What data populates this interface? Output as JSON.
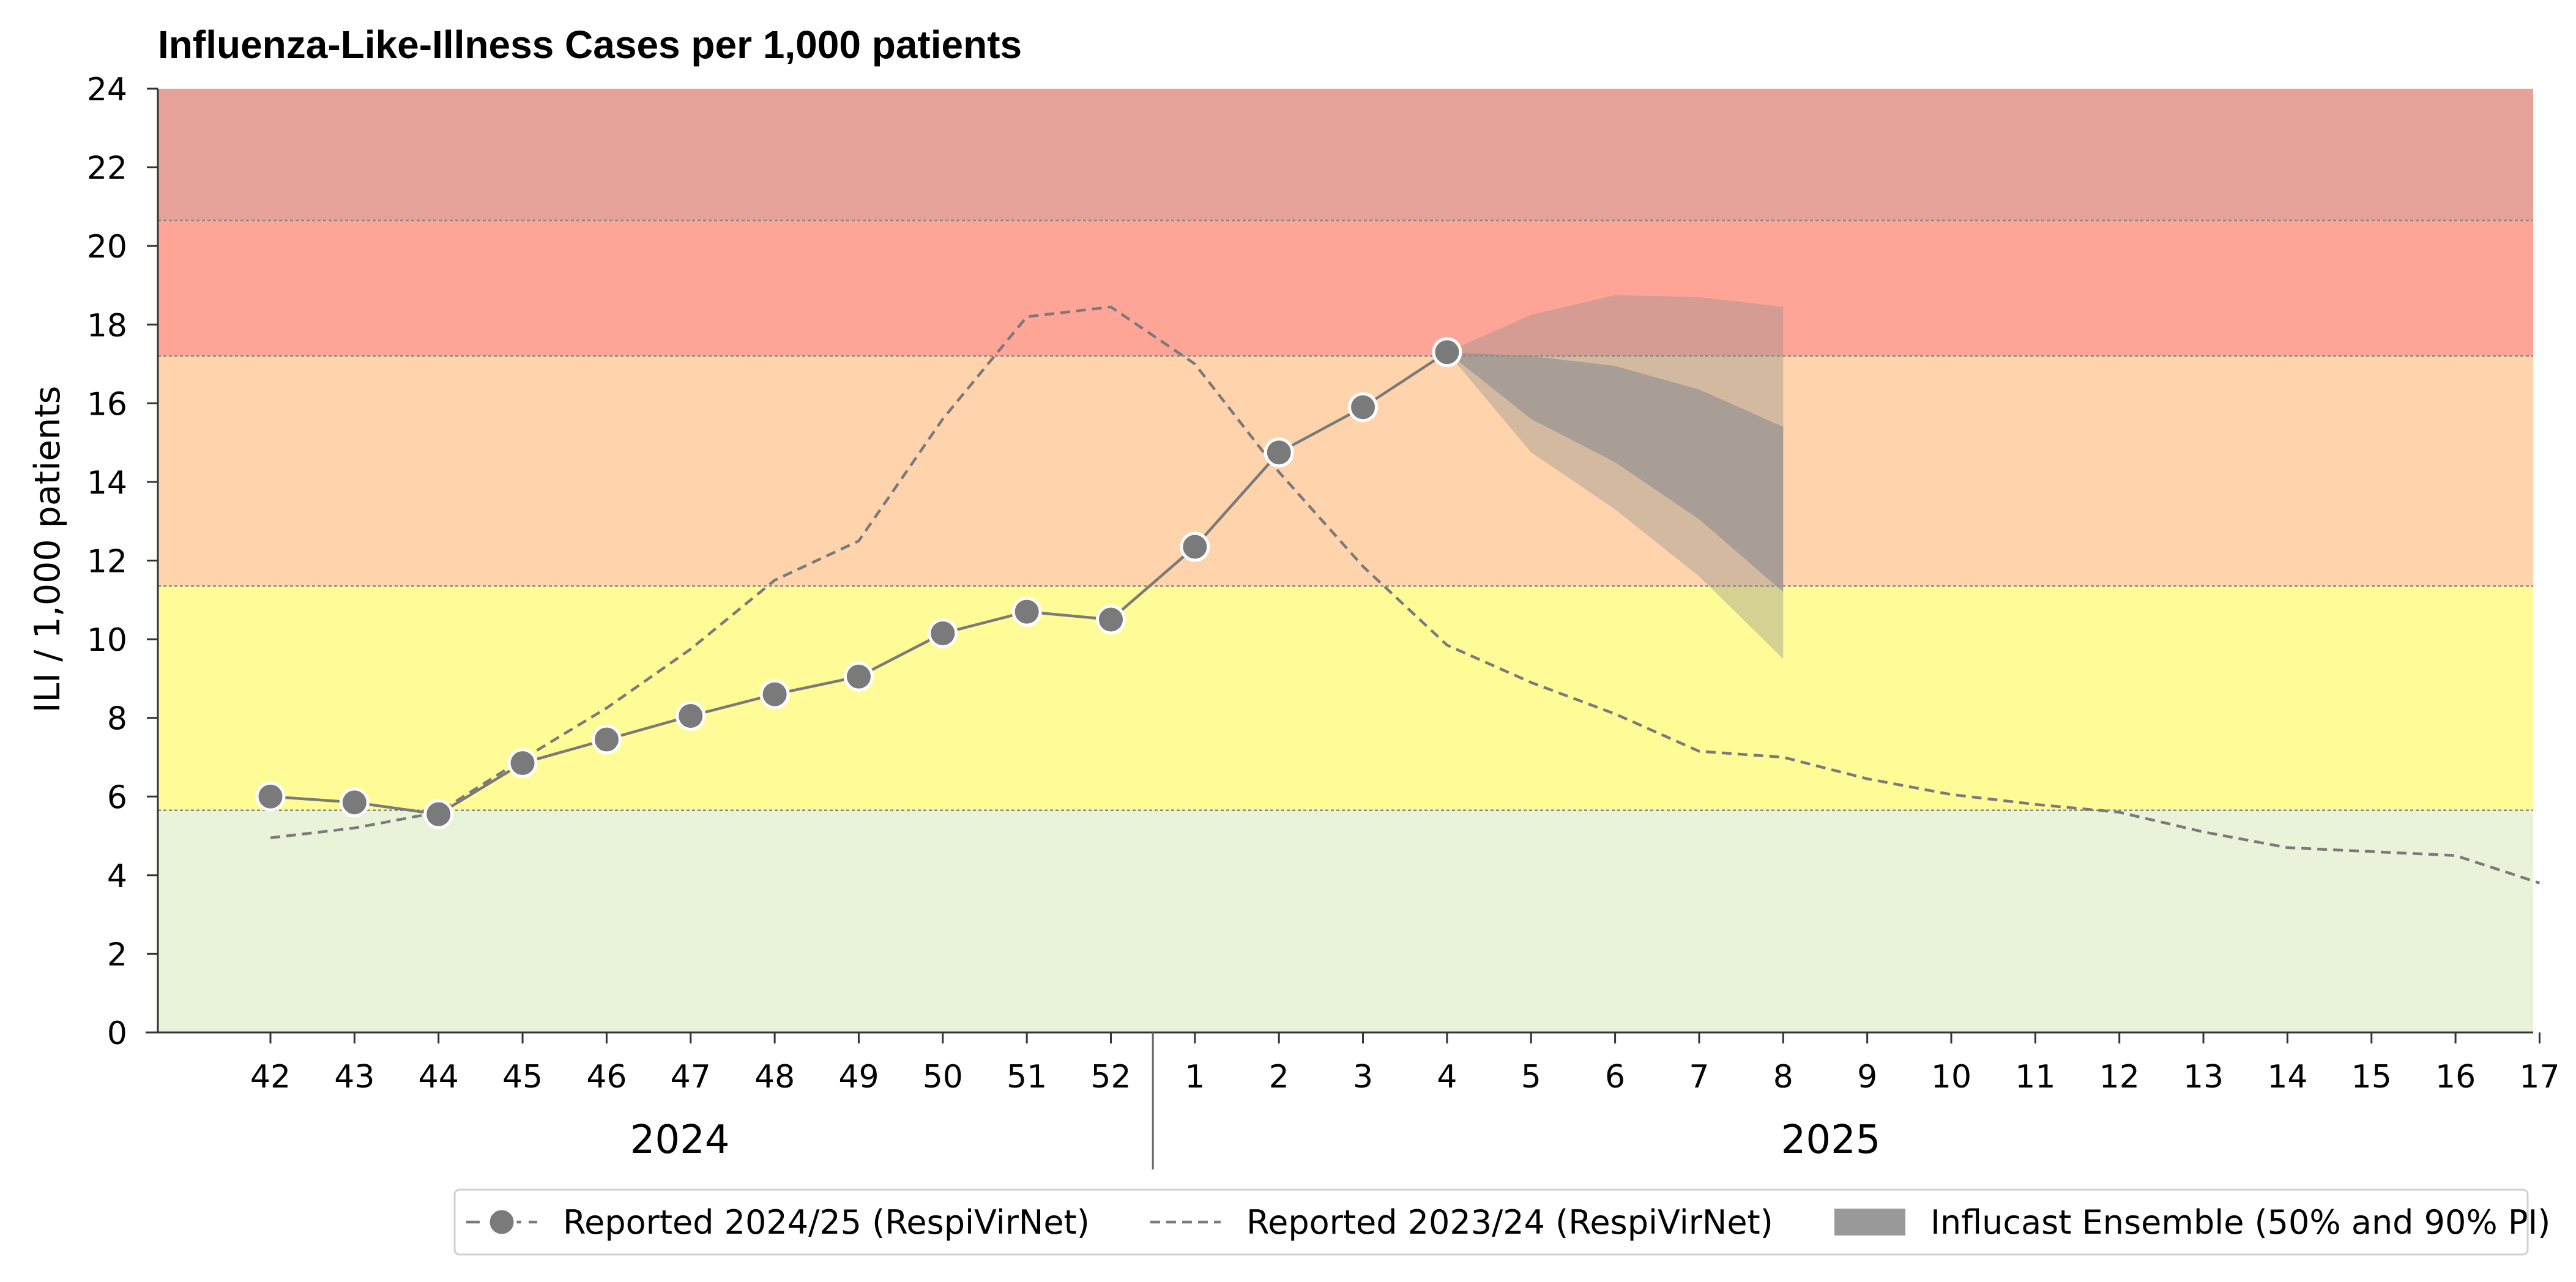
{
  "chart_data": {
    "type": "line",
    "title": "Influenza-Like-Illness Cases per 1,000 patients",
    "ylabel": "ILI / 1,000 patients",
    "xlabel": "",
    "ylim": [
      0,
      24
    ],
    "y_ticks": [
      0,
      2,
      4,
      6,
      8,
      10,
      12,
      14,
      16,
      18,
      20,
      22,
      24
    ],
    "categories": [
      "42",
      "43",
      "44",
      "45",
      "46",
      "47",
      "48",
      "49",
      "50",
      "51",
      "52",
      "1",
      "2",
      "3",
      "4",
      "5",
      "6",
      "7",
      "8",
      "9",
      "10",
      "11",
      "12",
      "13",
      "14",
      "15",
      "16",
      "17"
    ],
    "year_groups": [
      {
        "label": "2024",
        "first": "42",
        "last": "52"
      },
      {
        "label": "2025",
        "first": "1",
        "last": "17"
      }
    ],
    "intensity_bands": [
      {
        "from": 0,
        "to": 5.65,
        "color": "#e8f3da"
      },
      {
        "from": 5.65,
        "to": 11.35,
        "color": "#fffb97"
      },
      {
        "from": 11.35,
        "to": 17.2,
        "color": "#ffd4ad"
      },
      {
        "from": 17.2,
        "to": 20.65,
        "color": "#ffa597"
      },
      {
        "from": 20.65,
        "to": 24,
        "color": "#e6a298"
      }
    ],
    "series": [
      {
        "name": "Reported 2024/25 (RespiVirNet)",
        "style": "solid-markers",
        "color": "#7a7a7a",
        "x": [
          "42",
          "43",
          "44",
          "45",
          "46",
          "47",
          "48",
          "49",
          "50",
          "51",
          "52",
          "1",
          "2",
          "3",
          "4"
        ],
        "values": [
          6.0,
          5.85,
          5.55,
          6.85,
          7.45,
          8.05,
          8.6,
          9.05,
          10.15,
          10.7,
          10.5,
          12.35,
          14.75,
          15.9,
          17.3
        ]
      },
      {
        "name": "Reported 2023/24 (RespiVirNet)",
        "style": "dashed",
        "color": "#7a7a7a",
        "x": [
          "42",
          "43",
          "44",
          "45",
          "46",
          "47",
          "48",
          "49",
          "50",
          "51",
          "52",
          "1",
          "2",
          "3",
          "4",
          "5",
          "6",
          "7",
          "8",
          "9",
          "10",
          "11",
          "12",
          "13",
          "14",
          "15",
          "16",
          "17"
        ],
        "values": [
          4.95,
          5.2,
          5.6,
          6.95,
          8.25,
          9.75,
          11.5,
          12.5,
          15.6,
          18.2,
          18.45,
          17.0,
          14.25,
          11.85,
          9.85,
          8.9,
          8.1,
          7.15,
          7.0,
          6.45,
          6.05,
          5.8,
          5.6,
          5.1,
          4.7,
          4.6,
          4.5,
          3.8
        ]
      }
    ],
    "forecast": {
      "name": "Influcast Ensemble (50% and 90% PI)",
      "color": "#8e8e8e",
      "x": [
        "4",
        "5",
        "6",
        "7",
        "8"
      ],
      "pi90_lower": [
        17.3,
        14.75,
        13.3,
        11.6,
        9.5
      ],
      "pi90_upper": [
        17.3,
        18.25,
        18.75,
        18.7,
        18.45
      ],
      "pi50_lower": [
        17.3,
        15.6,
        14.5,
        13.05,
        11.2
      ],
      "pi50_upper": [
        17.3,
        17.2,
        16.95,
        16.35,
        15.4
      ]
    },
    "grid": false,
    "legend_position": "bottom-right"
  }
}
